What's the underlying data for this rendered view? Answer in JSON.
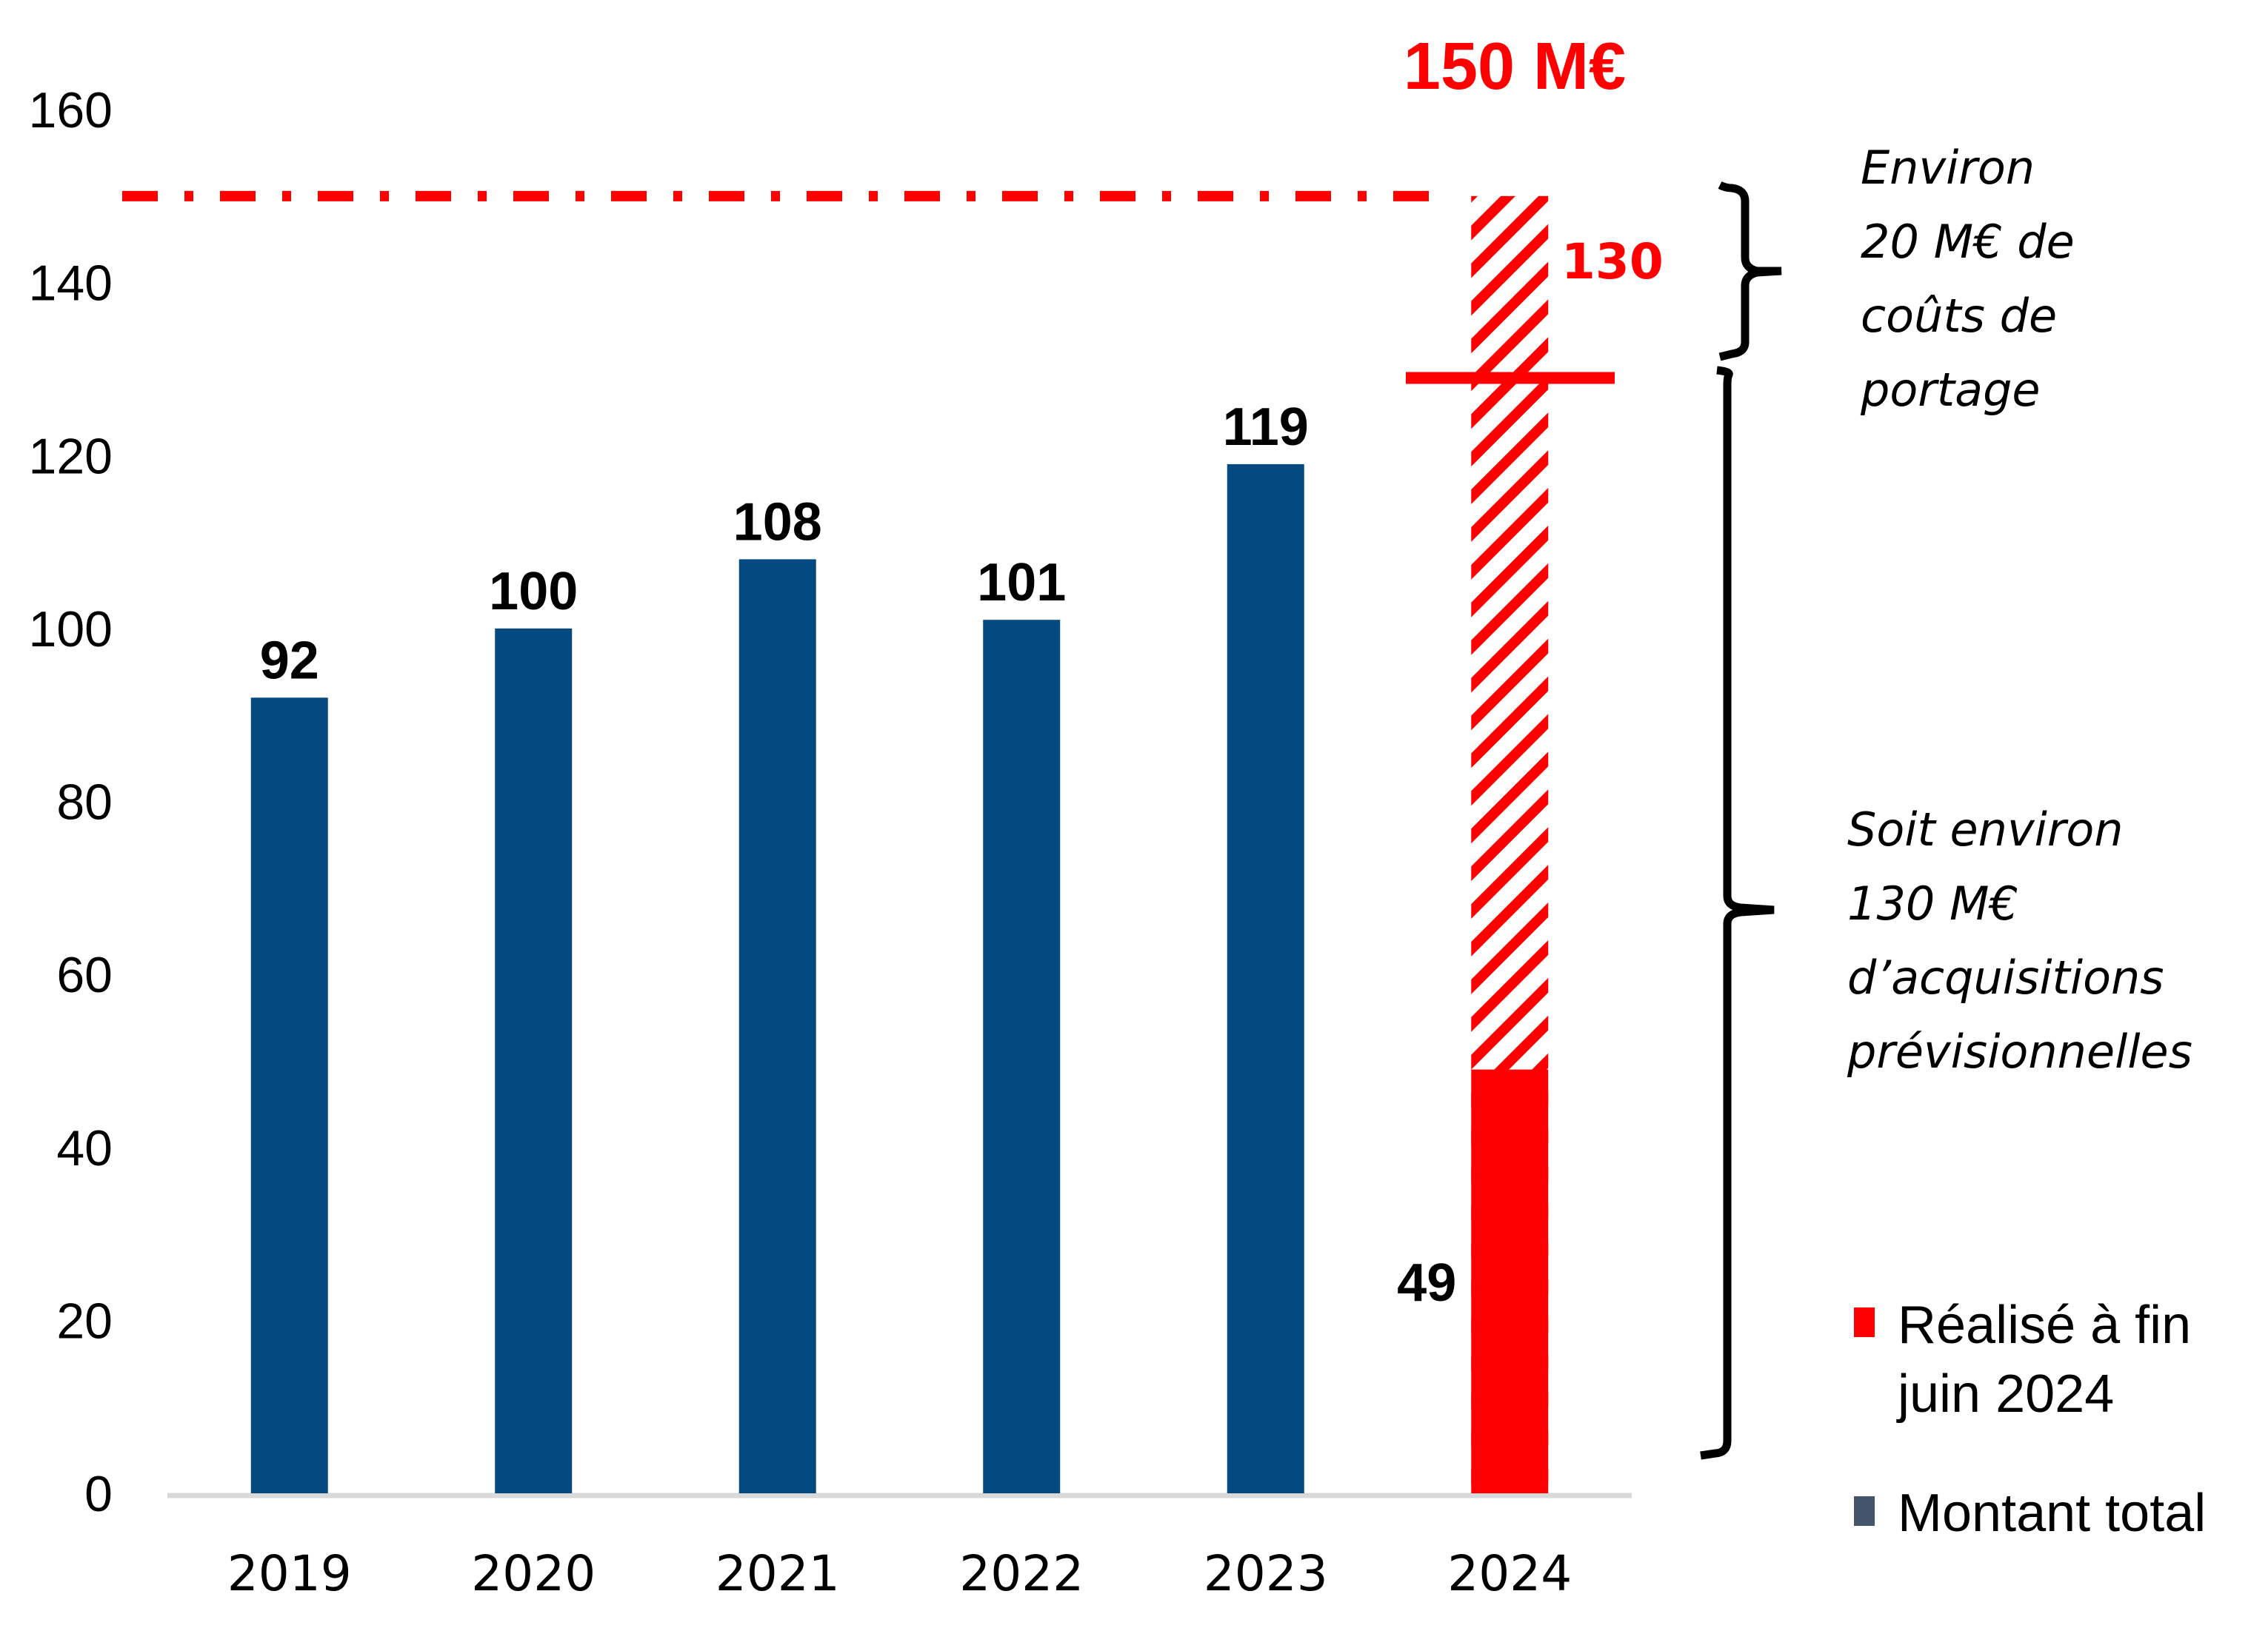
{
  "chart_data": {
    "type": "bar",
    "title": "",
    "xlabel": "",
    "ylabel": "",
    "ylim": [
      0,
      160
    ],
    "yticks": [
      0,
      20,
      40,
      60,
      80,
      100,
      120,
      140,
      160
    ],
    "grid": false,
    "categories": [
      "2019",
      "2020",
      "2021",
      "2022",
      "2023",
      "2024"
    ],
    "series": [
      {
        "name": "Montant total",
        "color": "#044A80",
        "values": [
          92,
          100,
          108,
          101,
          119,
          null
        ],
        "labels": [
          "92",
          "100",
          "108",
          "101",
          "119",
          ""
        ]
      },
      {
        "name": "Réalisé à fin juin 2024",
        "color": "#FF0000",
        "values": [
          null,
          null,
          null,
          null,
          null,
          49
        ],
        "labels": [
          "",
          "",
          "",
          "",
          "",
          "49"
        ]
      }
    ],
    "forecast_2024": {
      "total": 150,
      "acquisitions": 130,
      "pattern": "hatched",
      "color": "#FF0000"
    },
    "target_line": {
      "value": 150,
      "style": "dash-dot",
      "color": "#FF0000"
    },
    "target_label": "150 M€",
    "acquisition_marker": {
      "value": 130,
      "label": "130"
    },
    "legend": {
      "position": "bottom-right",
      "items": [
        {
          "label": "Réalisé à fin juin 2024",
          "color": "#FF0000"
        },
        {
          "label": "Montant total",
          "color": "#44546A"
        }
      ]
    },
    "annotations": [
      {
        "lines": [
          "Environ",
          "20 M€ de",
          "coûts de",
          "portage"
        ]
      },
      {
        "lines": [
          "Soit environ",
          "130 M€",
          "d’acquisitions",
          "prévisionnelles"
        ]
      }
    ]
  }
}
